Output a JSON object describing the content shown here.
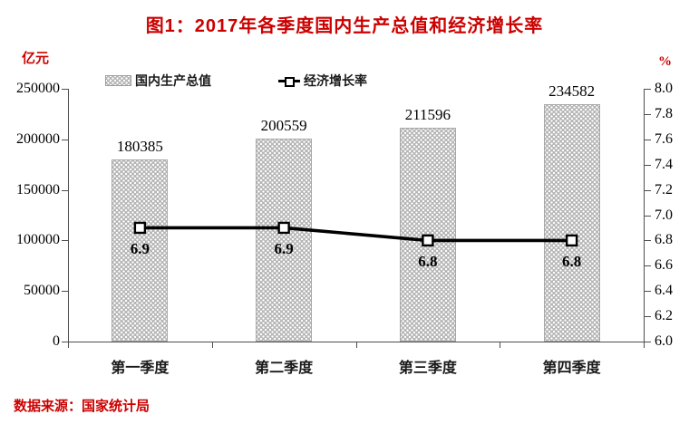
{
  "header": {
    "title": "图1：2017年各季度国内生产总值和经济增长率",
    "left_unit": "亿元",
    "right_unit": "%"
  },
  "legend": {
    "gdp_label": "国内生产总值",
    "growth_label": "经济增长率"
  },
  "footer": {
    "source_note": "数据来源：国家统计局"
  },
  "chart_data": {
    "type": "bar",
    "subtype": "combo-bar-line-dual-axis",
    "title": "图1：2017年各季度国内生产总值和经济增长率",
    "categories": [
      "第一季度",
      "第二季度",
      "第三季度",
      "第四季度"
    ],
    "series": [
      {
        "name": "国内生产总值",
        "type": "bar",
        "axis": "left",
        "unit": "亿元",
        "values": [
          180385,
          200559,
          211596,
          234582
        ],
        "data_labels": [
          "180385",
          "200559",
          "211596",
          "234582"
        ]
      },
      {
        "name": "经济增长率",
        "type": "line",
        "axis": "right",
        "unit": "%",
        "values": [
          6.9,
          6.9,
          6.8,
          6.8
        ],
        "data_labels": [
          "6.9",
          "6.9",
          "6.8",
          "6.8"
        ]
      }
    ],
    "left_axis": {
      "title": "亿元",
      "min": 0,
      "max": 250000,
      "step": 50000,
      "tick_labels": [
        "250000",
        "200000",
        "150000",
        "100000",
        "50000",
        "0"
      ]
    },
    "right_axis": {
      "title": "%",
      "min": 6.0,
      "max": 8.0,
      "step": 0.2,
      "tick_labels": [
        "8.0",
        "7.8",
        "7.6",
        "7.4",
        "7.2",
        "7.0",
        "6.8",
        "6.6",
        "6.4",
        "6.2",
        "6.0"
      ]
    },
    "grid": false,
    "legend_position": "top-left-of-plot",
    "source_note": "数据来源：国家统计局",
    "colors": {
      "bar_fill": "#b4b4b4",
      "bar_dot": "#ffffff",
      "line": "#000000",
      "marker_fill": "#ffffff",
      "marker_border": "#000000",
      "accent_text": "#cc0000",
      "axis": "#4d4d4d",
      "label_text": "#000000"
    }
  }
}
